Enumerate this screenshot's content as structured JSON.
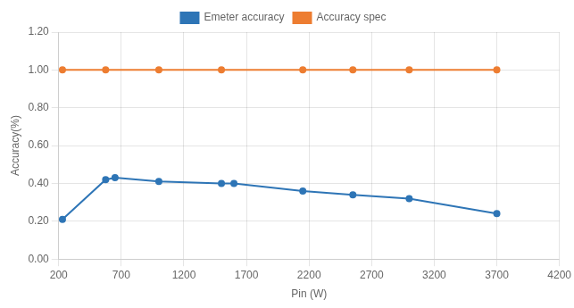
{
  "chart_data": {
    "type": "line",
    "x_label": "Pin (W)",
    "y_label": "Accuracy(%)",
    "series": [
      {
        "name": "Emeter accuracy",
        "color": "#2E75B6",
        "marker": "circle",
        "x": [
          230,
          575,
          650,
          1000,
          1500,
          1600,
          2150,
          2550,
          3000,
          3700
        ],
        "values": [
          0.21,
          0.42,
          0.43,
          0.41,
          0.4,
          0.4,
          0.36,
          0.34,
          0.32,
          0.24
        ]
      },
      {
        "name": "Accuracy spec",
        "color": "#ED7D31",
        "marker": "circle",
        "x": [
          230,
          575,
          1000,
          1500,
          2150,
          2550,
          3000,
          3700
        ],
        "values": [
          1.0,
          1.0,
          1.0,
          1.0,
          1.0,
          1.0,
          1.0,
          1.0
        ]
      }
    ],
    "xlim": [
      200,
      4200
    ],
    "ylim": [
      0.0,
      1.2
    ],
    "xticks": [
      200,
      700,
      1200,
      1700,
      2200,
      2700,
      3200,
      3700,
      4200
    ],
    "yticks": [
      {
        "value": 0.0,
        "label": "0.00"
      },
      {
        "value": 0.2,
        "label": "0.20"
      },
      {
        "value": 0.4,
        "label": "0.40"
      },
      {
        "value": 0.6,
        "label": "0.60"
      },
      {
        "value": 0.8,
        "label": "0.80"
      },
      {
        "value": 1.0,
        "label": "1.00"
      },
      {
        "value": 1.2,
        "label": "1.20"
      }
    ],
    "grid": true,
    "legend": "top"
  }
}
